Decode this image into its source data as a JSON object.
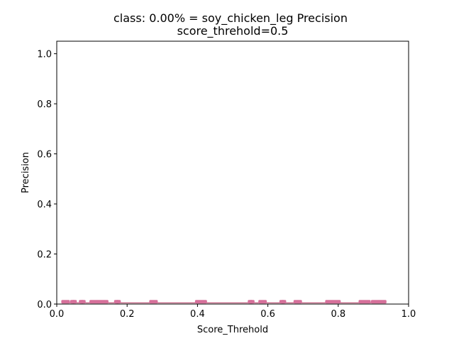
{
  "chart_data": {
    "type": "scatter",
    "title_line1": "class: 0.00% = soy_chicken_leg Precision",
    "title_line2": "score_threhold=0.5",
    "xlabel": "Score_Threhold",
    "ylabel": "Precision",
    "xlim": [
      0.0,
      1.0
    ],
    "ylim": [
      0.0,
      1.05
    ],
    "grid": false,
    "legend": "none",
    "x_ticks": [
      "0.0",
      "0.2",
      "0.4",
      "0.6",
      "0.8",
      "1.0"
    ],
    "y_ticks": [
      "0.0",
      "0.2",
      "0.4",
      "0.6",
      "0.8",
      "1.0"
    ],
    "marker_color": "#d6709a",
    "line_color": "#b0305a",
    "series": [
      {
        "x": [
          0.02,
          0.03,
          0.045,
          0.05,
          0.07,
          0.075,
          0.1,
          0.11,
          0.12,
          0.13,
          0.14,
          0.17,
          0.175,
          0.27,
          0.28,
          0.4,
          0.41,
          0.42,
          0.55,
          0.555,
          0.58,
          0.59,
          0.64,
          0.645,
          0.68,
          0.69,
          0.77,
          0.78,
          0.79,
          0.8,
          0.865,
          0.875,
          0.885,
          0.9,
          0.91,
          0.92,
          0.93
        ],
        "y": [
          0.005,
          0.005,
          0.005,
          0.005,
          0.005,
          0.005,
          0.005,
          0.005,
          0.005,
          0.005,
          0.005,
          0.005,
          0.005,
          0.005,
          0.005,
          0.005,
          0.005,
          0.005,
          0.005,
          0.005,
          0.005,
          0.005,
          0.005,
          0.005,
          0.005,
          0.005,
          0.005,
          0.005,
          0.005,
          0.005,
          0.005,
          0.005,
          0.005,
          0.005,
          0.005,
          0.005,
          0.005
        ]
      }
    ]
  }
}
